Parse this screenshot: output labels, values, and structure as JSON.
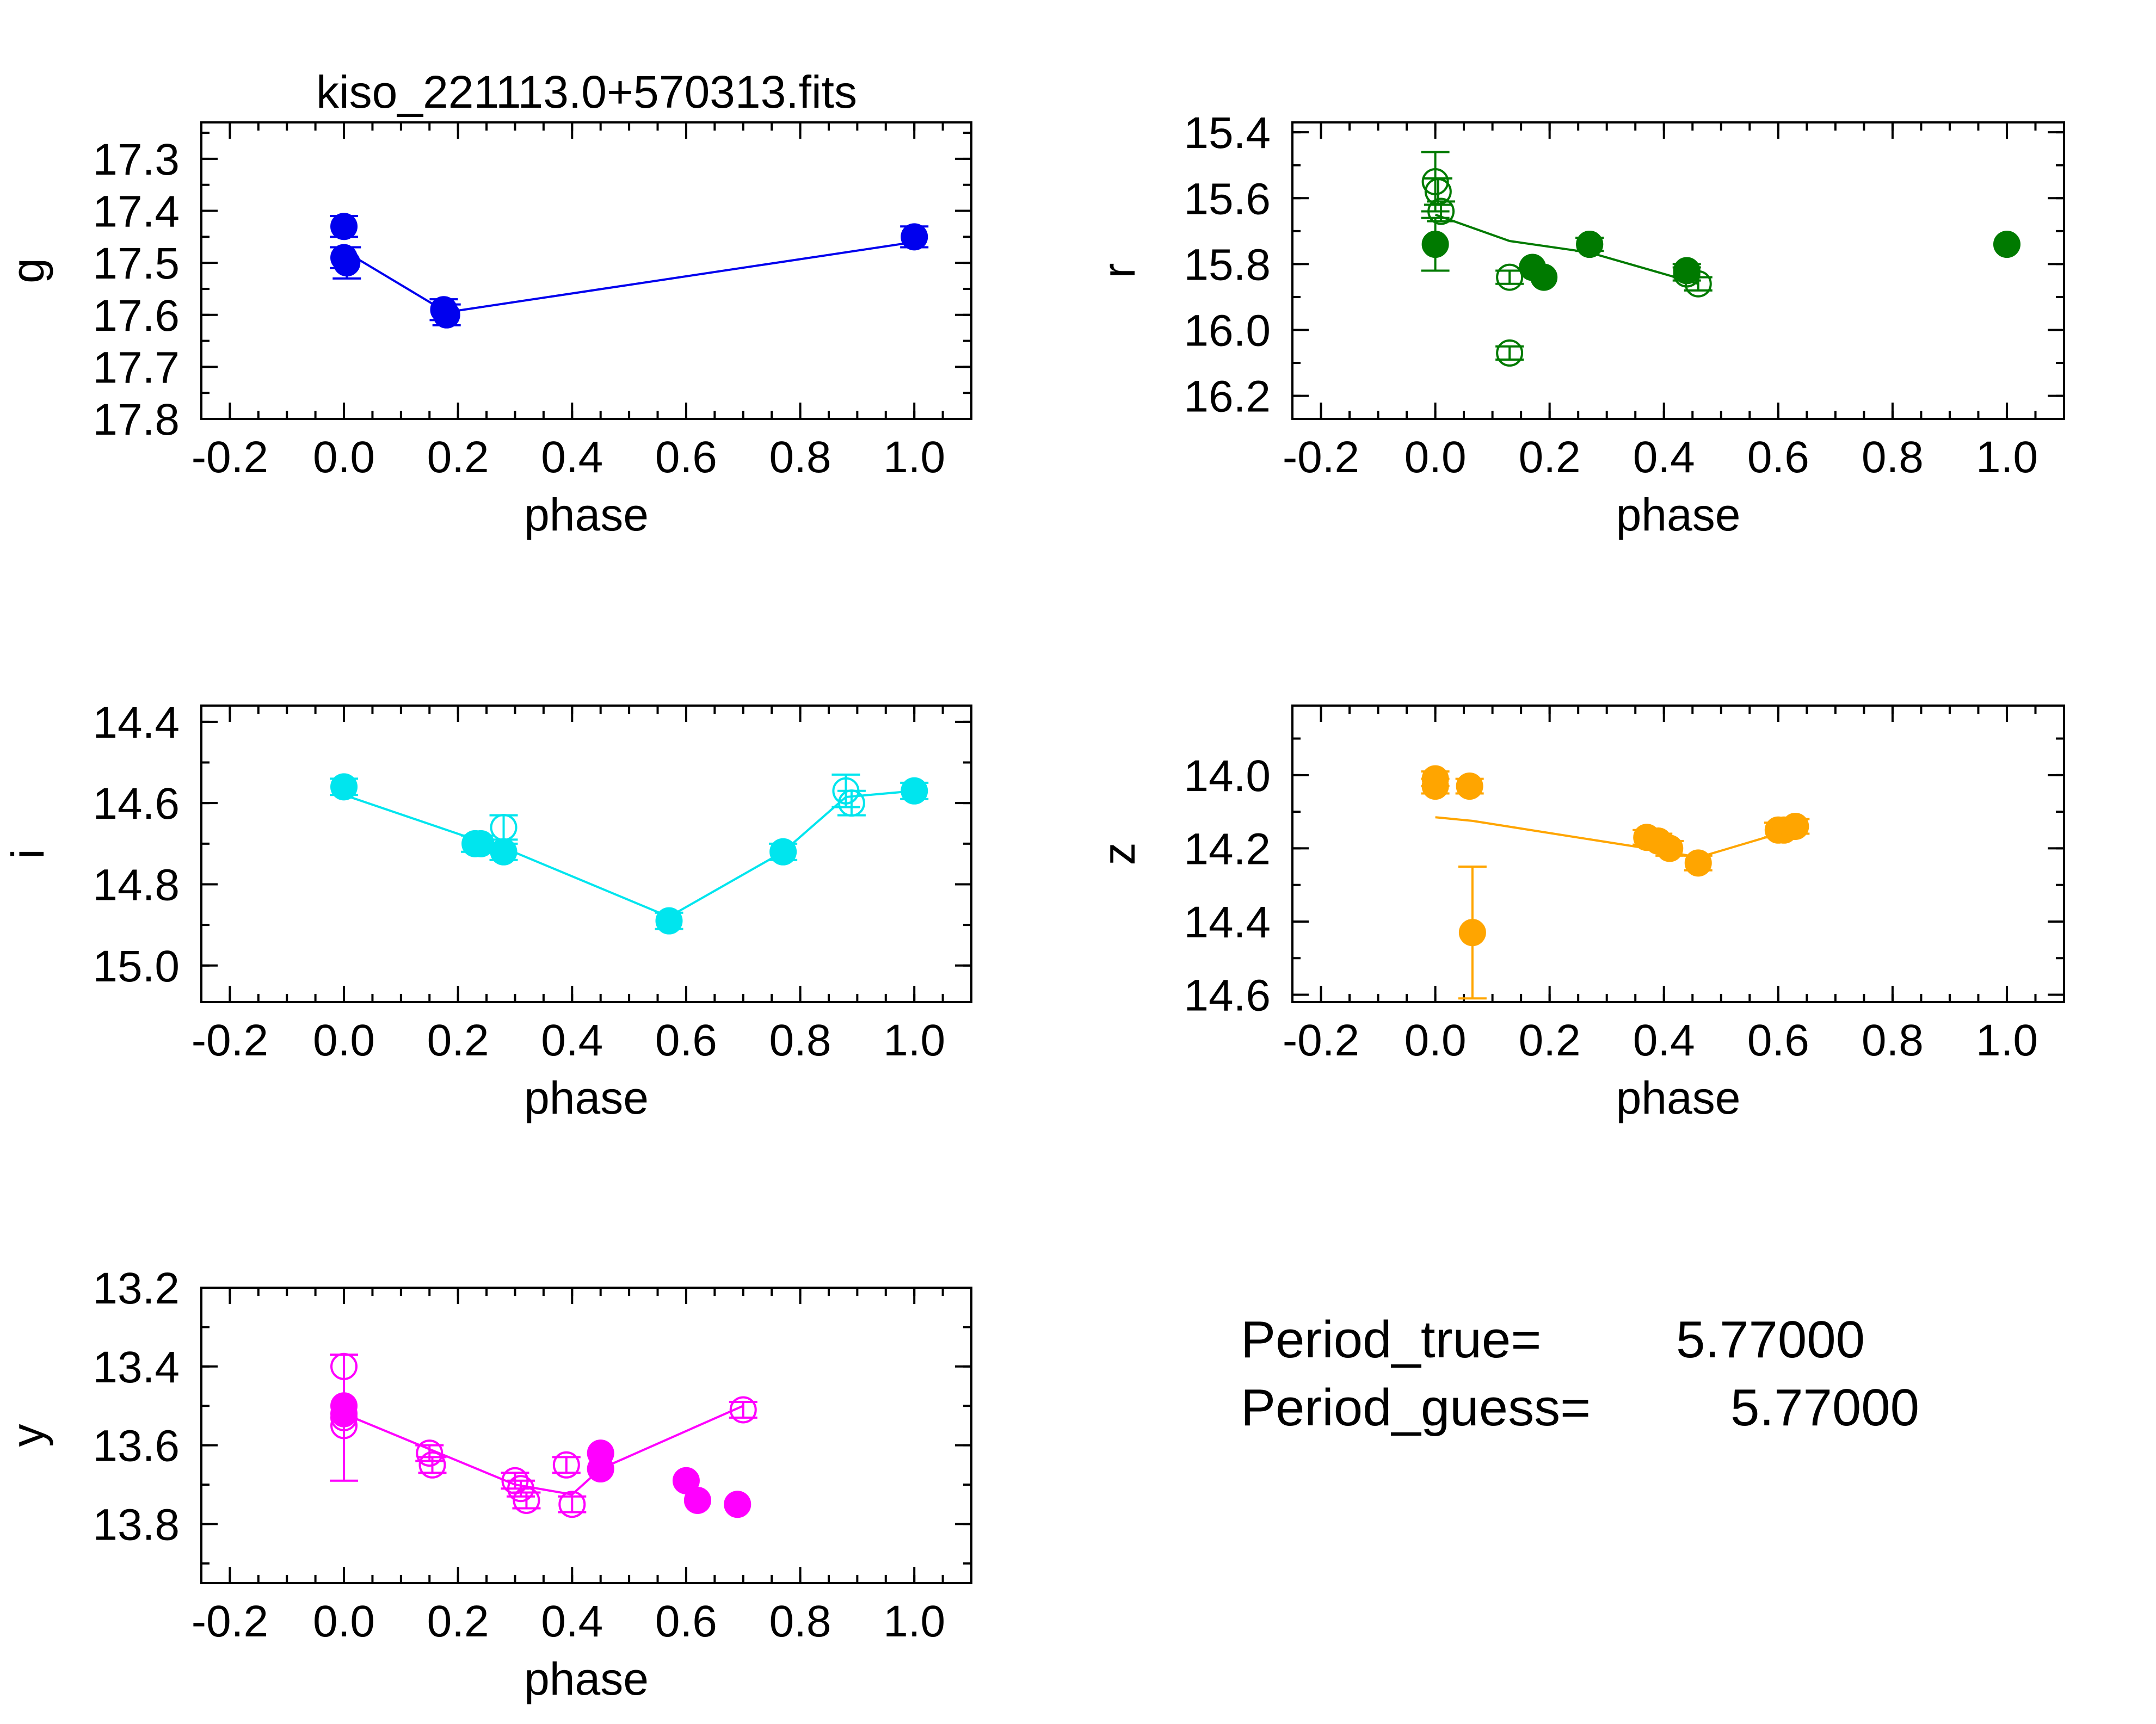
{
  "title": "kiso_221113.0+570313.fits",
  "info": {
    "period_true_label": "Period_true=",
    "period_true_value": "5.77000",
    "period_guess_label": "Period_guess=",
    "period_guess_value": "5.77000"
  },
  "chart_data": [
    {
      "type": "scatter",
      "band": "g",
      "title": "kiso_221113.0+570313.fits",
      "xlabel": "phase",
      "ylabel": "g",
      "color": "#0000ee",
      "xlim": [
        -0.25,
        1.1
      ],
      "ylim": [
        17.8,
        17.23
      ],
      "xticks": [
        "-0.2",
        "0.0",
        "0.2",
        "0.4",
        "0.6",
        "0.8",
        "1.0"
      ],
      "yticks": [
        "17.3",
        "17.4",
        "17.5",
        "17.6",
        "17.7",
        "17.8"
      ],
      "filled": [
        {
          "x": 0.0,
          "y": 17.43,
          "err": 0.02
        },
        {
          "x": 0.0,
          "y": 17.49,
          "err": 0.02
        },
        {
          "x": 0.005,
          "y": 17.5,
          "err": 0.03
        },
        {
          "x": 0.175,
          "y": 17.59,
          "err": 0.02
        },
        {
          "x": 0.18,
          "y": 17.6,
          "err": 0.02
        },
        {
          "x": 1.0,
          "y": 17.45,
          "err": 0.02
        }
      ],
      "open": [],
      "line": [
        {
          "x": 0.0,
          "y": 17.465
        },
        {
          "x": 0.005,
          "y": 17.48
        },
        {
          "x": 0.18,
          "y": 17.595
        },
        {
          "x": 1.0,
          "y": 17.46
        }
      ]
    },
    {
      "type": "scatter",
      "band": "r",
      "xlabel": "phase",
      "ylabel": "r",
      "color": "#007a00",
      "xlim": [
        -0.25,
        1.1
      ],
      "ylim": [
        16.27,
        15.37
      ],
      "xticks": [
        "-0.2",
        "0.0",
        "0.2",
        "0.4",
        "0.6",
        "0.8",
        "1.0"
      ],
      "yticks": [
        "15.4",
        "15.6",
        "15.8",
        "16.0",
        "16.2"
      ],
      "filled": [
        {
          "x": 0.0,
          "y": 15.74,
          "err": 0.08
        },
        {
          "x": 0.17,
          "y": 15.81,
          "err": 0.0
        },
        {
          "x": 0.19,
          "y": 15.84,
          "err": 0.0
        },
        {
          "x": 0.27,
          "y": 15.74,
          "err": 0.02
        },
        {
          "x": 0.44,
          "y": 15.82,
          "err": 0.02
        },
        {
          "x": 1.0,
          "y": 15.74,
          "err": 0.0
        }
      ],
      "open": [
        {
          "x": 0.0,
          "y": 15.55,
          "err": 0.09
        },
        {
          "x": 0.005,
          "y": 15.58,
          "err": 0.04
        },
        {
          "x": 0.01,
          "y": 15.64,
          "err": 0.03
        },
        {
          "x": 0.13,
          "y": 15.84,
          "err": 0.02
        },
        {
          "x": 0.13,
          "y": 16.07,
          "err": 0.02
        },
        {
          "x": 0.27,
          "y": 15.74,
          "err": 0.02
        },
        {
          "x": 0.44,
          "y": 15.83,
          "err": 0.02
        },
        {
          "x": 0.46,
          "y": 15.86,
          "err": 0.02
        }
      ],
      "line": [
        {
          "x": 0.0,
          "y": 15.65
        },
        {
          "x": 0.13,
          "y": 15.73
        },
        {
          "x": 0.27,
          "y": 15.765
        },
        {
          "x": 0.46,
          "y": 15.86
        }
      ]
    },
    {
      "type": "scatter",
      "band": "i",
      "xlabel": "phase",
      "ylabel": "i",
      "color": "#00e5ee",
      "xlim": [
        -0.25,
        1.1
      ],
      "ylim": [
        15.09,
        14.36
      ],
      "xticks": [
        "-0.2",
        "0.0",
        "0.2",
        "0.4",
        "0.6",
        "0.8",
        "1.0"
      ],
      "yticks": [
        "14.4",
        "14.6",
        "14.8",
        "15.0"
      ],
      "filled": [
        {
          "x": 0.0,
          "y": 14.56,
          "err": 0.02
        },
        {
          "x": 0.23,
          "y": 14.7,
          "err": 0.02
        },
        {
          "x": 0.24,
          "y": 14.7,
          "err": 0.02
        },
        {
          "x": 0.28,
          "y": 14.72,
          "err": 0.02
        },
        {
          "x": 0.57,
          "y": 14.89,
          "err": 0.02
        },
        {
          "x": 0.77,
          "y": 14.72,
          "err": 0.02
        },
        {
          "x": 1.0,
          "y": 14.57,
          "err": 0.02
        }
      ],
      "open": [
        {
          "x": 0.28,
          "y": 14.66,
          "err": 0.03
        },
        {
          "x": 0.88,
          "y": 14.57,
          "err": 0.04
        },
        {
          "x": 0.89,
          "y": 14.6,
          "err": 0.03
        }
      ],
      "line": [
        {
          "x": 0.0,
          "y": 14.58
        },
        {
          "x": 0.23,
          "y": 14.69
        },
        {
          "x": 0.28,
          "y": 14.71
        },
        {
          "x": 0.57,
          "y": 14.88
        },
        {
          "x": 0.77,
          "y": 14.72
        },
        {
          "x": 0.88,
          "y": 14.585
        },
        {
          "x": 1.0,
          "y": 14.57
        }
      ]
    },
    {
      "type": "scatter",
      "band": "z",
      "xlabel": "phase",
      "ylabel": "z",
      "color": "#ffa500",
      "xlim": [
        -0.25,
        1.1
      ],
      "ylim": [
        14.62,
        13.81
      ],
      "xticks": [
        "-0.2",
        "0.0",
        "0.2",
        "0.4",
        "0.6",
        "0.8",
        "1.0"
      ],
      "yticks": [
        "14.0",
        "14.2",
        "14.4",
        "14.6"
      ],
      "filled": [
        {
          "x": 0.0,
          "y": 14.01,
          "err": 0.02
        },
        {
          "x": 0.0,
          "y": 14.03,
          "err": 0.02
        },
        {
          "x": 0.06,
          "y": 14.03,
          "err": 0.02
        },
        {
          "x": 0.065,
          "y": 14.43,
          "err": 0.18
        },
        {
          "x": 0.37,
          "y": 14.17,
          "err": 0.02
        },
        {
          "x": 0.39,
          "y": 14.18,
          "err": 0.02
        },
        {
          "x": 0.41,
          "y": 14.2,
          "err": 0.02
        },
        {
          "x": 0.46,
          "y": 14.24,
          "err": 0.02
        },
        {
          "x": 0.6,
          "y": 14.15,
          "err": 0.02
        },
        {
          "x": 0.61,
          "y": 14.15,
          "err": 0.02
        },
        {
          "x": 0.63,
          "y": 14.14,
          "err": 0.02
        }
      ],
      "open": [],
      "line": [
        {
          "x": 0.0,
          "y": 14.115
        },
        {
          "x": 0.065,
          "y": 14.125
        },
        {
          "x": 0.37,
          "y": 14.2
        },
        {
          "x": 0.41,
          "y": 14.21
        },
        {
          "x": 0.46,
          "y": 14.225
        },
        {
          "x": 0.6,
          "y": 14.16
        },
        {
          "x": 0.63,
          "y": 14.15
        }
      ]
    },
    {
      "type": "scatter",
      "band": "y",
      "xlabel": "phase",
      "ylabel": "y",
      "color": "#ff00ff",
      "xlim": [
        -0.25,
        1.1
      ],
      "ylim": [
        13.95,
        13.2
      ],
      "xticks": [
        "-0.2",
        "0.0",
        "0.2",
        "0.4",
        "0.6",
        "0.8",
        "1.0"
      ],
      "yticks": [
        "13.2",
        "13.4",
        "13.6",
        "13.8"
      ],
      "filled": [
        {
          "x": 0.0,
          "y": 13.5,
          "err": 0.0
        },
        {
          "x": 0.0,
          "y": 13.52,
          "err": 0.0
        },
        {
          "x": 0.45,
          "y": 13.62,
          "err": 0.0
        },
        {
          "x": 0.45,
          "y": 13.66,
          "err": 0.0
        },
        {
          "x": 0.6,
          "y": 13.69,
          "err": 0.0
        },
        {
          "x": 0.62,
          "y": 13.74,
          "err": 0.0
        },
        {
          "x": 0.69,
          "y": 13.75,
          "err": 0.0
        }
      ],
      "open": [
        {
          "x": 0.0,
          "y": 13.4,
          "err": 0.0
        },
        {
          "x": 0.0,
          "y": 13.55,
          "err": 0.0
        },
        {
          "x": 0.0,
          "y": 13.53,
          "err": 0.16
        },
        {
          "x": 0.15,
          "y": 13.62,
          "err": 0.02
        },
        {
          "x": 0.155,
          "y": 13.65,
          "err": 0.02
        },
        {
          "x": 0.3,
          "y": 13.69,
          "err": 0.02
        },
        {
          "x": 0.31,
          "y": 13.71,
          "err": 0.02
        },
        {
          "x": 0.32,
          "y": 13.74,
          "err": 0.02
        },
        {
          "x": 0.39,
          "y": 13.65,
          "err": 0.02
        },
        {
          "x": 0.4,
          "y": 13.75,
          "err": 0.02
        },
        {
          "x": 0.7,
          "y": 13.51,
          "err": 0.02
        }
      ],
      "line": [
        {
          "x": 0.0,
          "y": 13.52
        },
        {
          "x": 0.15,
          "y": 13.61
        },
        {
          "x": 0.3,
          "y": 13.7
        },
        {
          "x": 0.4,
          "y": 13.725
        },
        {
          "x": 0.45,
          "y": 13.66
        },
        {
          "x": 0.7,
          "y": 13.5
        }
      ]
    }
  ]
}
